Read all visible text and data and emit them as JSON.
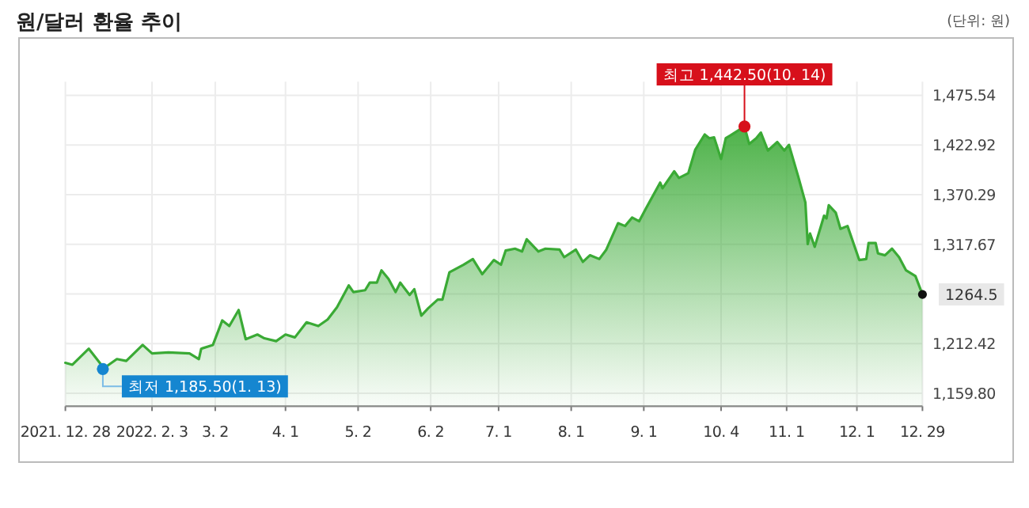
{
  "chart_data": {
    "type": "area",
    "title": "원/달러 환율 추이",
    "annotations": [
      "(단위: 원)",
      {
        "text": "최고 1,442.50(10. 14)",
        "x": "2022-10-14",
        "y": 1442.5
      },
      {
        "text": "최저 1,185.50(1. 13)",
        "x": "2022-01-13",
        "y": 1185.5
      },
      {
        "text": "1264.5",
        "x": "2022-12-29",
        "y": 1264.5
      }
    ],
    "x": [
      "2021-12-28",
      "2021-12-31",
      "2022-01-07",
      "2022-01-12",
      "2022-01-13",
      "2022-01-19",
      "2022-01-23",
      "2022-01-30",
      "2022-02-03",
      "2022-02-10",
      "2022-02-19",
      "2022-02-23",
      "2022-02-24",
      "2022-03-01",
      "2022-03-05",
      "2022-03-08",
      "2022-03-12",
      "2022-03-15",
      "2022-03-20",
      "2022-03-23",
      "2022-03-28",
      "2022-04-01",
      "2022-04-05",
      "2022-04-10",
      "2022-04-15",
      "2022-04-19",
      "2022-04-23",
      "2022-04-28",
      "2022-04-30",
      "2022-05-05",
      "2022-05-07",
      "2022-05-10",
      "2022-05-12",
      "2022-05-15",
      "2022-05-18",
      "2022-05-20",
      "2022-05-24",
      "2022-05-26",
      "2022-05-29",
      "2022-06-01",
      "2022-06-05",
      "2022-06-07",
      "2022-06-10",
      "2022-06-16",
      "2022-06-20",
      "2022-06-24",
      "2022-06-29",
      "2022-07-02",
      "2022-07-04",
      "2022-07-08",
      "2022-07-11",
      "2022-07-13",
      "2022-07-18",
      "2022-07-21",
      "2022-07-27",
      "2022-07-29",
      "2022-08-03",
      "2022-08-06",
      "2022-08-09",
      "2022-08-13",
      "2022-08-16",
      "2022-08-21",
      "2022-08-24",
      "2022-08-27",
      "2022-08-30",
      "2022-09-02",
      "2022-09-08",
      "2022-09-09",
      "2022-09-14",
      "2022-09-16",
      "2022-09-20",
      "2022-09-23",
      "2022-09-27",
      "2022-09-29",
      "2022-10-01",
      "2022-10-04",
      "2022-10-06",
      "2022-10-08",
      "2022-10-14",
      "2022-10-16",
      "2022-10-19",
      "2022-10-21",
      "2022-10-24",
      "2022-10-28",
      "2022-10-31",
      "2022-11-02",
      "2022-11-06",
      "2022-11-09",
      "2022-11-10",
      "2022-11-11",
      "2022-11-13",
      "2022-11-17",
      "2022-11-18",
      "2022-11-19",
      "2022-11-22",
      "2022-11-24",
      "2022-11-27",
      "2022-12-02",
      "2022-12-05",
      "2022-12-06",
      "2022-12-09",
      "2022-12-10",
      "2022-12-13",
      "2022-12-16",
      "2022-12-19",
      "2022-12-22",
      "2022-12-26",
      "2022-12-29"
    ],
    "series": [
      {
        "color": "#3aaa35",
        "values": [
          1192,
          1190,
          1207,
          1191,
          1185.5,
          1196,
          1194,
          1211,
          1202,
          1203,
          1202,
          1196,
          1207,
          1211,
          1237,
          1231,
          1248,
          1217,
          1222,
          1218,
          1215,
          1222,
          1219,
          1235,
          1231,
          1238,
          1251,
          1274,
          1267,
          1269,
          1277,
          1277,
          1290,
          1281,
          1267,
          1277,
          1264,
          1270,
          1242,
          1250,
          1259,
          1259,
          1288,
          1296,
          1302,
          1286,
          1301,
          1296,
          1311,
          1313,
          1310,
          1323,
          1310,
          1313,
          1312,
          1304,
          1312,
          1299,
          1306,
          1302,
          1312,
          1340,
          1337,
          1346,
          1342,
          1356,
          1383,
          1377,
          1395,
          1388,
          1393,
          1418,
          1434,
          1430,
          1431,
          1408,
          1430,
          1433,
          1442.5,
          1424,
          1430,
          1436,
          1417,
          1426,
          1417,
          1423,
          1389,
          1362,
          1318,
          1329,
          1315,
          1348,
          1345,
          1359,
          1351,
          1334,
          1337,
          1301,
          1302,
          1319,
          1319,
          1308,
          1306,
          1313,
          1304,
          1290,
          1284,
          1264.5
        ]
      }
    ],
    "xlim": [
      "2021-12-28",
      "2022-12-29"
    ],
    "xticks": [
      {
        "value": "2021-12-28",
        "label": "2021. 12. 28"
      },
      {
        "value": "2022-02-03",
        "label": "2022. 2. 3"
      },
      {
        "value": "2022-03-02",
        "label": "3. 2"
      },
      {
        "value": "2022-04-01",
        "label": "4. 1"
      },
      {
        "value": "2022-05-02",
        "label": "5. 2"
      },
      {
        "value": "2022-06-02",
        "label": "6. 2"
      },
      {
        "value": "2022-07-01",
        "label": "7. 1"
      },
      {
        "value": "2022-08-01",
        "label": "8. 1"
      },
      {
        "value": "2022-09-01",
        "label": "9. 1"
      },
      {
        "value": "2022-10-04",
        "label": "10. 4"
      },
      {
        "value": "2022-11-01",
        "label": "11. 1"
      },
      {
        "value": "2022-12-01",
        "label": "12. 1"
      },
      {
        "value": "2022-12-29",
        "label": "12. 29"
      }
    ],
    "ylim": [
      1146,
      1490
    ],
    "yticks": [
      {
        "value": 1159.8,
        "label": "1,159.80"
      },
      {
        "value": 1212.42,
        "label": "1,212.42"
      },
      {
        "value": 1265.05,
        "label": null
      },
      {
        "value": 1317.67,
        "label": "1,317.67"
      },
      {
        "value": 1370.29,
        "label": "1,370.29"
      },
      {
        "value": 1422.92,
        "label": "1,422.92"
      },
      {
        "value": 1475.54,
        "label": "1,475.54"
      }
    ],
    "grid": true
  }
}
